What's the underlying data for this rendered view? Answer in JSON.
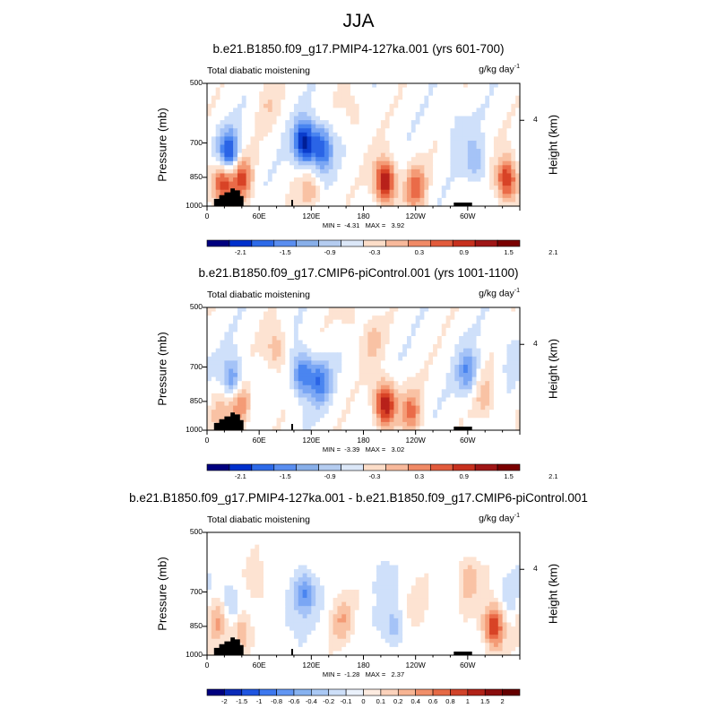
{
  "main_title": "JJA",
  "chart_data": [
    {
      "type": "heatmap",
      "title": "b.e21.B1850.f09_g17.PMIP4-127ka.001 (yrs 601-700)",
      "left_label": "Total diabatic moistening",
      "right_label": "g/kg day",
      "right_label_sup": "-1",
      "ylabel": "Pressure (mb)",
      "y2label": "Height (km)",
      "yticks": [
        "500",
        "700",
        "850",
        "1000"
      ],
      "y2ticks": [
        "4"
      ],
      "xticks": [
        "0",
        "60E",
        "120E",
        "180",
        "120W",
        "60W"
      ],
      "xlim": [
        0,
        360
      ],
      "ylim": [
        1000,
        500
      ],
      "min_max": "MIN =  -4.31   MAX =   3.92",
      "colorbar_labels": [
        "-2.1",
        "-1.5",
        "-0.9",
        "-0.3",
        "0.3",
        "0.9",
        "1.5",
        "2.1"
      ],
      "features": [
        {
          "lon": 25,
          "p": 740,
          "v": -2.0
        },
        {
          "lon": 18,
          "p": 870,
          "v": 1.8
        },
        {
          "lon": 40,
          "p": 860,
          "v": 1.6
        },
        {
          "lon": 112,
          "p": 700,
          "v": -2.4
        },
        {
          "lon": 132,
          "p": 720,
          "v": -1.8
        },
        {
          "lon": 118,
          "p": 930,
          "v": 0.8
        },
        {
          "lon": 205,
          "p": 870,
          "v": 2.4
        },
        {
          "lon": 240,
          "p": 900,
          "v": 1.4
        },
        {
          "lon": 170,
          "p": 600,
          "v": 0.4
        },
        {
          "lon": 290,
          "p": 650,
          "v": -0.4
        },
        {
          "lon": 310,
          "p": 780,
          "v": -0.8
        },
        {
          "lon": 345,
          "p": 860,
          "v": 2.0
        },
        {
          "lon": 70,
          "p": 560,
          "v": 0.4
        }
      ]
    },
    {
      "type": "heatmap",
      "title": "b.e21.B1850.f09_g17.CMIP6-piControl.001 (yrs 1001-1100)",
      "left_label": "Total diabatic moistening",
      "right_label": "g/kg day",
      "right_label_sup": "-1",
      "ylabel": "Pressure (mb)",
      "y2label": "Height (km)",
      "yticks": [
        "500",
        "700",
        "850",
        "1000"
      ],
      "y2ticks": [
        "4"
      ],
      "xticks": [
        "0",
        "60E",
        "120E",
        "180",
        "120W",
        "60W"
      ],
      "xlim": [
        0,
        360
      ],
      "ylim": [
        1000,
        500
      ],
      "min_max": "MIN =  -3.39   MAX =   3.02",
      "colorbar_labels": [
        "-2.1",
        "-1.5",
        "-0.9",
        "-0.3",
        "0.3",
        "0.9",
        "1.5",
        "2.1"
      ],
      "features": [
        {
          "lon": 30,
          "p": 760,
          "v": -1.4
        },
        {
          "lon": 38,
          "p": 860,
          "v": 1.4
        },
        {
          "lon": 15,
          "p": 900,
          "v": 0.7
        },
        {
          "lon": 110,
          "p": 730,
          "v": -1.6
        },
        {
          "lon": 130,
          "p": 760,
          "v": -1.4
        },
        {
          "lon": 80,
          "p": 640,
          "v": 0.8
        },
        {
          "lon": 205,
          "p": 860,
          "v": 2.4
        },
        {
          "lon": 235,
          "p": 900,
          "v": 1.2
        },
        {
          "lon": 190,
          "p": 600,
          "v": 0.6
        },
        {
          "lon": 300,
          "p": 720,
          "v": -1.2
        },
        {
          "lon": 320,
          "p": 830,
          "v": 0.7
        },
        {
          "lon": 350,
          "p": 650,
          "v": -0.3
        },
        {
          "lon": 165,
          "p": 520,
          "v": 0.4
        }
      ]
    },
    {
      "type": "heatmap",
      "title": "b.e21.B1850.f09_g17.PMIP4-127ka.001 - b.e21.B1850.f09_g17.CMIP6-piControl.001",
      "left_label": "Total diabatic moistening",
      "right_label": "g/kg day",
      "right_label_sup": "-1",
      "ylabel": "Pressure (mb)",
      "y2label": "Height (km)",
      "yticks": [
        "500",
        "700",
        "850",
        "1000"
      ],
      "y2ticks": [
        "4"
      ],
      "xticks": [
        "0",
        "60E",
        "120E",
        "180",
        "120W",
        "60W"
      ],
      "xlim": [
        0,
        360
      ],
      "ylim": [
        1000,
        500
      ],
      "min_max": "MIN =  -1.28   MAX =   2.37",
      "colorbar_labels": [
        "-2",
        "-1.5",
        "-1",
        "-0.8",
        "-0.6",
        "-0.4",
        "-0.2",
        "-0.1",
        "0",
        "0.1",
        "0.2",
        "0.4",
        "0.6",
        "0.8",
        "1",
        "1.5",
        "2"
      ],
      "features": [
        {
          "lon": 12,
          "p": 820,
          "v": 0.8
        },
        {
          "lon": 28,
          "p": 760,
          "v": -0.7
        },
        {
          "lon": 40,
          "p": 880,
          "v": 0.9
        },
        {
          "lon": 60,
          "p": 680,
          "v": 0.4
        },
        {
          "lon": 112,
          "p": 700,
          "v": -1.2
        },
        {
          "lon": 95,
          "p": 780,
          "v": -0.4
        },
        {
          "lon": 155,
          "p": 820,
          "v": 0.7
        },
        {
          "lon": 215,
          "p": 850,
          "v": -0.7
        },
        {
          "lon": 245,
          "p": 780,
          "v": 0.3
        },
        {
          "lon": 200,
          "p": 640,
          "v": -0.3
        },
        {
          "lon": 300,
          "p": 650,
          "v": 0.8
        },
        {
          "lon": 330,
          "p": 850,
          "v": 1.8
        },
        {
          "lon": 350,
          "p": 720,
          "v": -0.3
        }
      ]
    }
  ],
  "colors": {
    "palette": [
      "#001e96",
      "#0a3ccc",
      "#2a64e6",
      "#4a85f0",
      "#7aa6f4",
      "#a5c3f7",
      "#cfe0fa",
      "#ffffff",
      "#fde3d2",
      "#f9c2a4",
      "#f49b76",
      "#ea6b48",
      "#d84326",
      "#b8211a",
      "#800000"
    ],
    "topography": "#000000",
    "cb_neg": [
      "#00007f",
      "#0030cc",
      "#2d6ae8",
      "#5a8ef0",
      "#88afe9",
      "#b4ccf0",
      "#dbe7f8"
    ],
    "cb_pos": [
      "#fcddc8",
      "#f8b99b",
      "#f08a66",
      "#e25b3c",
      "#c7301e",
      "#9f1616",
      "#7a0000"
    ]
  }
}
